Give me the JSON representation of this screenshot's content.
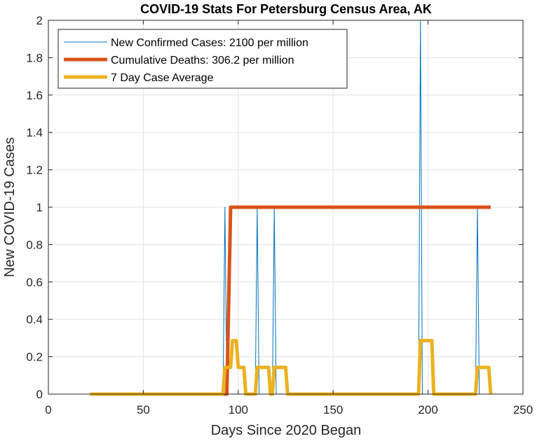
{
  "chart_data": {
    "type": "line",
    "title": "COVID-19 Stats For Petersburg Census Area, AK",
    "xlabel": "Days Since 2020 Began",
    "ylabel": "New COVID-19 Cases",
    "xlim": [
      0,
      250
    ],
    "ylim": [
      0,
      2
    ],
    "xticks": [
      0,
      50,
      100,
      150,
      200,
      250
    ],
    "yticks": [
      0,
      0.2,
      0.4,
      0.6,
      0.8,
      1,
      1.2,
      1.4,
      1.6,
      1.8,
      2
    ],
    "xtick_labels": [
      "0",
      "50",
      "100",
      "150",
      "200",
      "250"
    ],
    "ytick_labels": [
      "0",
      "0.2",
      "0.4",
      "0.6",
      "0.8",
      "1",
      "1.2",
      "1.4",
      "1.6",
      "1.8",
      "2"
    ],
    "grid": true,
    "legend_position": "top-left",
    "series": [
      {
        "name": "New Confirmed Cases: 2100 per million",
        "color": "#0072BD",
        "width": 1,
        "x": [
          22,
          92,
          93,
          94,
          109,
          110,
          111,
          118,
          119,
          120,
          195,
          196,
          197,
          225,
          226,
          227,
          233
        ],
        "y": [
          0,
          0,
          1,
          0,
          0,
          1,
          0,
          0,
          1,
          0,
          0,
          2,
          0,
          0,
          1,
          0,
          0
        ]
      },
      {
        "name": "Cumulative Deaths: 306.2 per million",
        "color": "#D95319",
        "width": 5,
        "x": [
          22,
          94,
          96,
          233
        ],
        "y": [
          0,
          0,
          1,
          1
        ]
      },
      {
        "name": "7 Day Case Average",
        "color": "#EDB120",
        "width": 5,
        "x": [
          22,
          92,
          93,
          96,
          97,
          99,
          100,
          103,
          104,
          109,
          110,
          116,
          117,
          118,
          119,
          125,
          126,
          195,
          196,
          202,
          203,
          225,
          226,
          232,
          233
        ],
        "y": [
          0,
          0,
          0.143,
          0.143,
          0.286,
          0.286,
          0.143,
          0.143,
          0,
          0,
          0.143,
          0.143,
          0,
          0,
          0.143,
          0.143,
          0,
          0,
          0.286,
          0.286,
          0,
          0,
          0.143,
          0.143,
          0
        ]
      }
    ]
  }
}
